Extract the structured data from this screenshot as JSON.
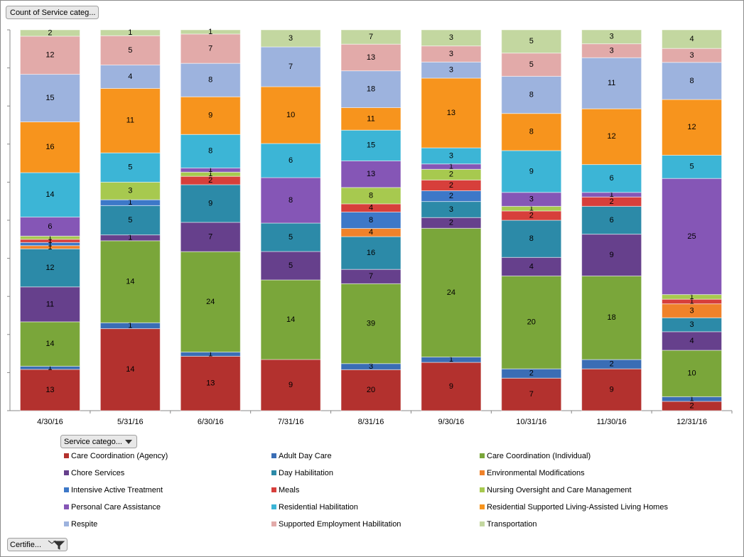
{
  "chart_data": {
    "type": "stacked_percent_bar",
    "value_field": "Count of Service categ...",
    "legend_field": "Service catego...",
    "filter_field": "Certifie...",
    "categories": [
      "4/30/16",
      "5/31/16",
      "6/30/16",
      "7/31/16",
      "8/31/16",
      "9/30/16",
      "10/31/16",
      "11/30/16",
      "12/31/16"
    ],
    "series": [
      {
        "name": "Care Coordination (Agency)",
        "color": "#b3312e",
        "values": [
          13,
          14,
          13,
          9,
          20,
          9,
          7,
          9,
          2
        ]
      },
      {
        "name": "Adult Day Care",
        "color": "#3a6db5",
        "values": [
          1,
          1,
          1,
          null,
          3,
          1,
          2,
          2,
          1
        ]
      },
      {
        "name": "Care Coordination (Individual)",
        "color": "#7aa63a",
        "values": [
          14,
          14,
          24,
          14,
          39,
          24,
          20,
          18,
          10
        ]
      },
      {
        "name": "Chore Services",
        "color": "#66408c",
        "values": [
          11,
          1,
          7,
          5,
          7,
          2,
          4,
          9,
          4
        ]
      },
      {
        "name": "Day Habilitation",
        "color": "#2c8aa8",
        "values": [
          12,
          5,
          9,
          5,
          16,
          3,
          8,
          6,
          3
        ]
      },
      {
        "name": "Environmental Modifications",
        "color": "#f0822a",
        "values": [
          1,
          null,
          null,
          null,
          4,
          null,
          null,
          null,
          3
        ]
      },
      {
        "name": "Intensive Active Treatment",
        "color": "#3d78c8",
        "values": [
          1,
          1,
          null,
          null,
          8,
          2,
          null,
          null,
          null
        ]
      },
      {
        "name": "Meals",
        "color": "#d73f3b",
        "values": [
          1,
          null,
          2,
          null,
          4,
          2,
          2,
          2,
          1
        ]
      },
      {
        "name": "Nursing Oversight and Care Management",
        "color": "#a7c94f",
        "values": [
          1,
          3,
          1,
          null,
          8,
          2,
          1,
          null,
          1
        ]
      },
      {
        "name": "Personal Care Assistance",
        "color": "#8556b6",
        "values": [
          6,
          null,
          1,
          8,
          13,
          1,
          3,
          1,
          25
        ]
      },
      {
        "name": "Residential Habilitation",
        "color": "#3cb5d6",
        "values": [
          14,
          5,
          8,
          6,
          15,
          3,
          9,
          6,
          5
        ]
      },
      {
        "name": "Residential Supported Living-Assisted Living Homes",
        "color": "#f7941d",
        "values": [
          16,
          11,
          9,
          10,
          11,
          13,
          8,
          12,
          12
        ]
      },
      {
        "name": "Respite",
        "color": "#9db3de",
        "values": [
          15,
          4,
          8,
          7,
          18,
          3,
          8,
          11,
          8
        ]
      },
      {
        "name": "Supported Employment Habilitation",
        "color": "#e2aaa9",
        "values": [
          12,
          5,
          7,
          null,
          13,
          3,
          5,
          3,
          3
        ]
      },
      {
        "name": "Transportation",
        "color": "#c3d7a0",
        "values": [
          2,
          1,
          1,
          3,
          7,
          3,
          5,
          3,
          4
        ]
      }
    ]
  }
}
